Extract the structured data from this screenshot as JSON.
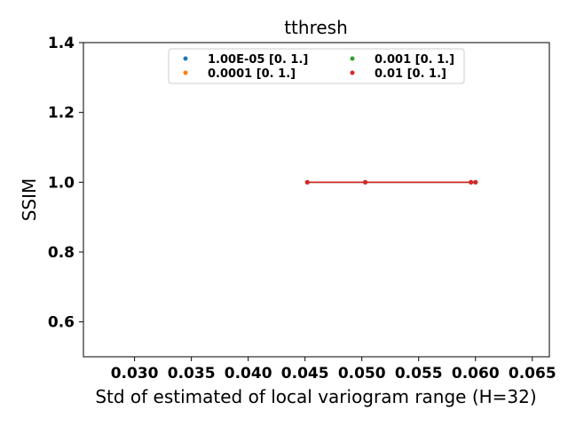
{
  "chart_data": {
    "type": "line",
    "title": "tthresh",
    "xlabel": "Std of estimated of local variogram range (H=32)",
    "ylabel": "SSIM",
    "xlim": [
      0.0255,
      0.0665
    ],
    "ylim": [
      0.5,
      1.4
    ],
    "xticks": [
      0.03,
      0.035,
      0.04,
      0.045,
      0.05,
      0.055,
      0.06,
      0.065
    ],
    "xtick_labels": [
      "0.030",
      "0.035",
      "0.040",
      "0.045",
      "0.050",
      "0.055",
      "0.060",
      "0.065"
    ],
    "yticks": [
      0.6,
      0.8,
      1.0,
      1.2,
      1.4
    ],
    "ytick_labels": [
      "0.6",
      "0.8",
      "1.0",
      "1.2",
      "1.4"
    ],
    "grid": false,
    "legend_position": "top-center",
    "series": [
      {
        "name": "1.00E-05 [0. 1.]",
        "color": "#1f77b4",
        "x": [
          0.0452,
          0.0503,
          0.0596,
          0.06
        ],
        "y": [
          1.0,
          1.0,
          1.0,
          1.0
        ]
      },
      {
        "name": "0.0001 [0. 1.]",
        "color": "#ff7f0e",
        "x": [
          0.0452,
          0.0503,
          0.0596,
          0.06
        ],
        "y": [
          1.0,
          1.0,
          1.0,
          1.0
        ]
      },
      {
        "name": "0.001 [0. 1.]",
        "color": "#2ca02c",
        "x": [
          0.0452,
          0.0503,
          0.0596,
          0.06
        ],
        "y": [
          1.0,
          1.0,
          1.0,
          1.0
        ]
      },
      {
        "name": "0.01 [0. 1.]",
        "color": "#d62728",
        "x": [
          0.0452,
          0.0503,
          0.0596,
          0.06
        ],
        "y": [
          1.0,
          1.0,
          1.0,
          1.0
        ]
      }
    ]
  }
}
